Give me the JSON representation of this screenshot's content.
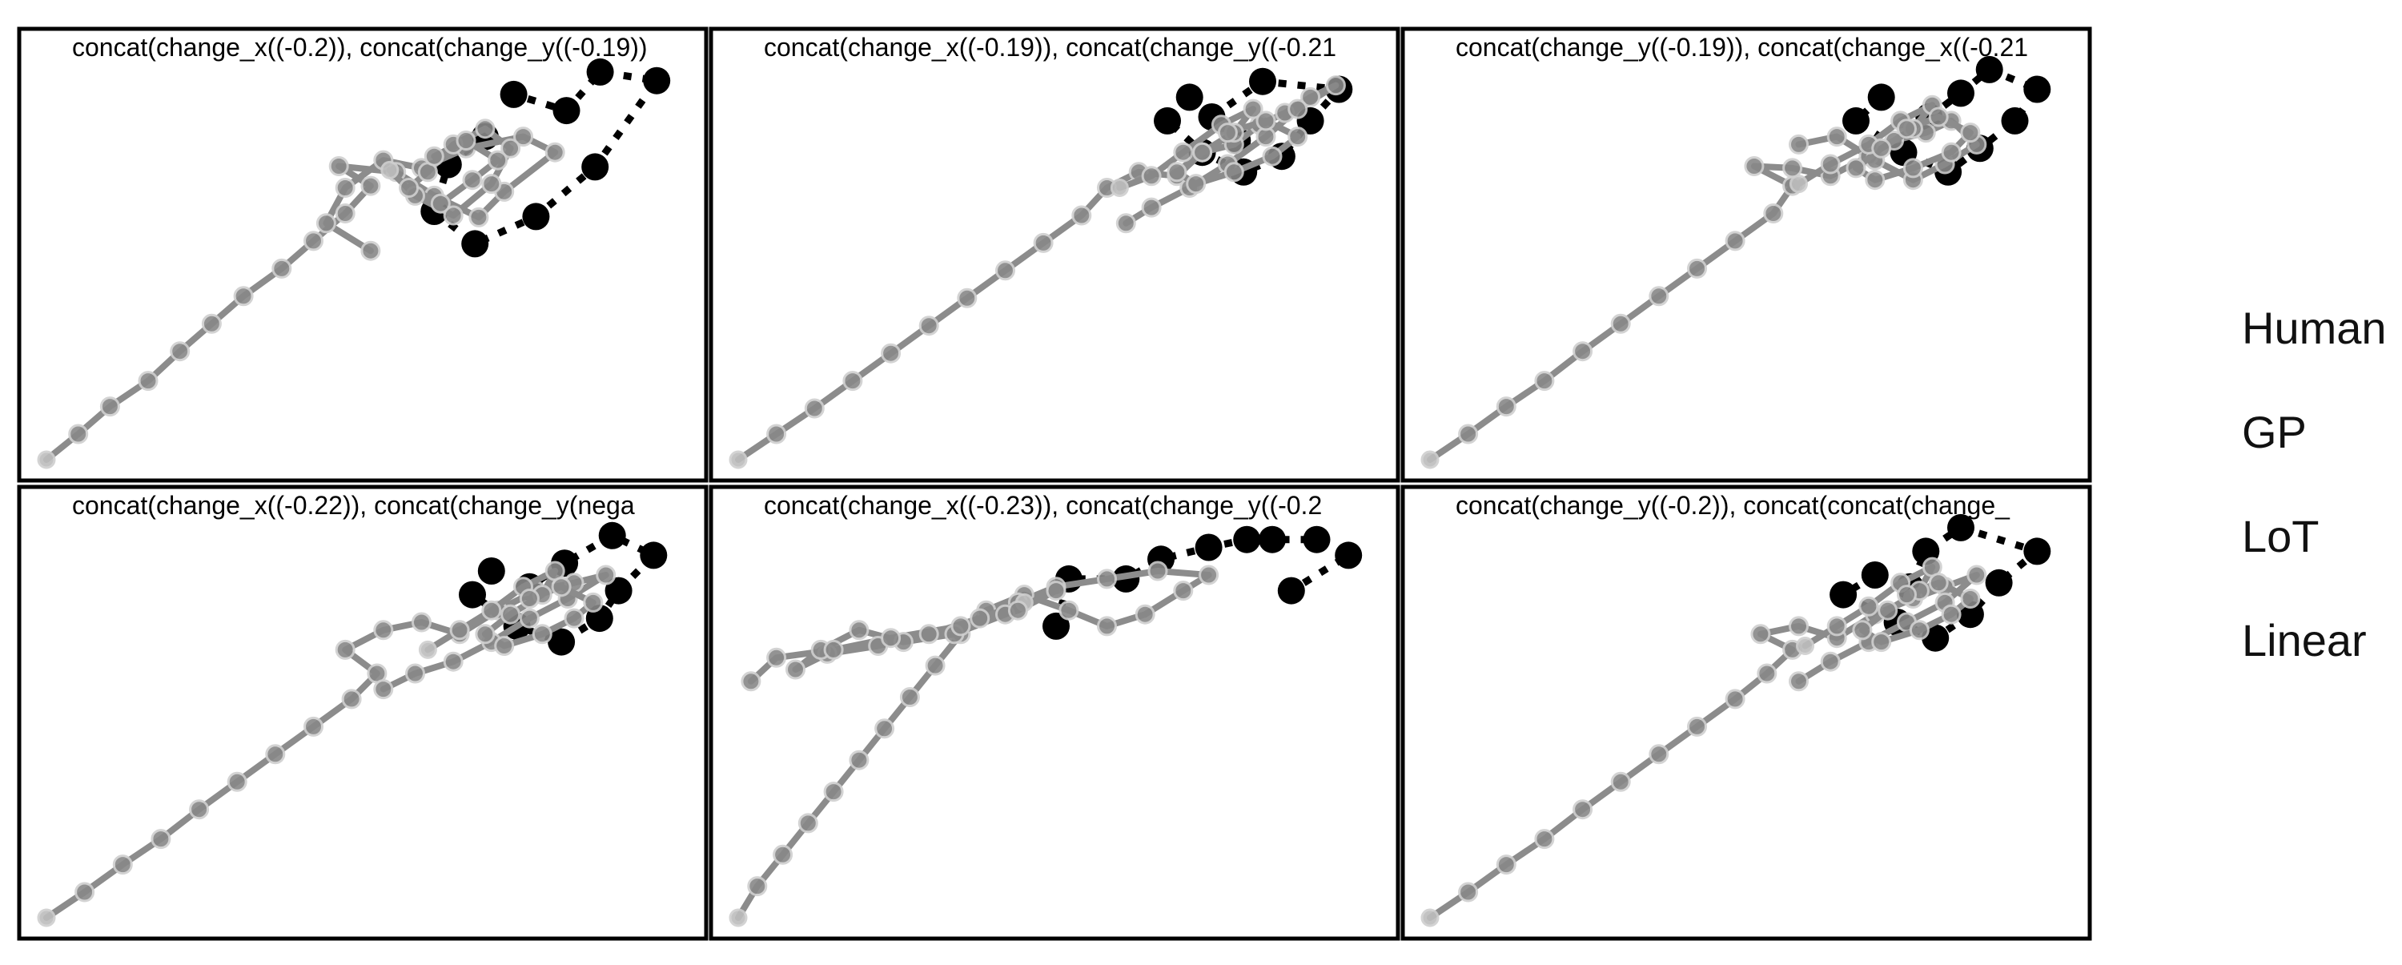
{
  "chart_data": [
    {
      "type": "line",
      "title": "concat(change_x((-0.2)), concat(change_y((-0.19))",
      "series": [
        {
          "name": "Human",
          "style": "black-dots-dotted",
          "x": [
            0.69,
            0.632,
            0.61,
            0.674,
            0.77,
            0.863,
            0.96,
            0.871,
            0.818,
            0.735
          ],
          "y": [
            0.82,
            0.749,
            0.63,
            0.548,
            0.617,
            0.743,
            0.962,
            0.984,
            0.886,
            0.927
          ]
        },
        {
          "name": "GP",
          "style": "gray-points-solid",
          "x": [
            0.0,
            0.05,
            0.1,
            0.16,
            0.21,
            0.26,
            0.31,
            0.37,
            0.42,
            0.47,
            0.51,
            0.46,
            0.55,
            0.61,
            0.68,
            0.72,
            0.8,
            0.75,
            0.66,
            0.59,
            0.53,
            0.47,
            0.44,
            0.51
          ],
          "y": [
            0.0,
            0.065,
            0.135,
            0.2,
            0.275,
            0.345,
            0.415,
            0.485,
            0.555,
            0.625,
            0.695,
            0.745,
            0.73,
            0.67,
            0.615,
            0.68,
            0.78,
            0.82,
            0.79,
            0.74,
            0.76,
            0.69,
            0.6,
            0.53
          ]
        },
        {
          "name": "LoT",
          "style": "gray-points-solid",
          "x": [
            0.54,
            0.58,
            0.64,
            0.7,
            0.73,
            0.69,
            0.64,
            0.6,
            0.57,
            0.62,
            0.67,
            0.71,
            0.66,
            0.61
          ],
          "y": [
            0.735,
            0.67,
            0.62,
            0.7,
            0.79,
            0.84,
            0.8,
            0.73,
            0.69,
            0.65,
            0.71,
            0.76,
            0.81,
            0.77
          ]
        }
      ]
    },
    {
      "type": "line",
      "title": "concat(change_x((-0.19)), concat(change_y((-0.21",
      "series": [
        {
          "name": "Human",
          "style": "black-dots-dotted",
          "x": [
            0.71,
            0.675,
            0.73,
            0.795,
            0.855,
            0.9,
            0.945,
            0.825,
            0.745,
            0.785
          ],
          "y": [
            0.92,
            0.86,
            0.78,
            0.73,
            0.77,
            0.86,
            0.94,
            0.96,
            0.87,
            0.81
          ]
        },
        {
          "name": "GP",
          "style": "gray-points-solid",
          "x": [
            0.0,
            0.06,
            0.12,
            0.18,
            0.24,
            0.3,
            0.36,
            0.42,
            0.48,
            0.54,
            0.58,
            0.63,
            0.69,
            0.73,
            0.78,
            0.82,
            0.86,
            0.9,
            0.94,
            0.88,
            0.83,
            0.77,
            0.71,
            0.65,
            0.61
          ],
          "y": [
            0.0,
            0.065,
            0.13,
            0.2,
            0.27,
            0.34,
            0.41,
            0.48,
            0.55,
            0.62,
            0.69,
            0.73,
            0.72,
            0.78,
            0.8,
            0.85,
            0.88,
            0.92,
            0.95,
            0.89,
            0.82,
            0.75,
            0.69,
            0.64,
            0.6
          ]
        },
        {
          "name": "LoT",
          "style": "gray-points-solid",
          "x": [
            0.6,
            0.65,
            0.7,
            0.76,
            0.81,
            0.78,
            0.73,
            0.69,
            0.72,
            0.78,
            0.84,
            0.88,
            0.83,
            0.77
          ],
          "y": [
            0.69,
            0.72,
            0.78,
            0.85,
            0.89,
            0.83,
            0.78,
            0.73,
            0.7,
            0.73,
            0.77,
            0.82,
            0.86,
            0.83
          ]
        }
      ]
    },
    {
      "type": "line",
      "title": "concat(change_y((-0.19)), concat(change_x((-0.21",
      "series": [
        {
          "name": "Human",
          "style": "black-dots-dotted",
          "x": [
            0.71,
            0.67,
            0.745,
            0.815,
            0.865,
            0.92,
            0.955,
            0.88,
            0.835,
            0.785
          ],
          "y": [
            0.92,
            0.86,
            0.78,
            0.73,
            0.79,
            0.86,
            0.94,
            0.99,
            0.93,
            0.87
          ]
        },
        {
          "name": "GP",
          "style": "gray-points-solid",
          "x": [
            0.0,
            0.06,
            0.12,
            0.18,
            0.24,
            0.3,
            0.36,
            0.42,
            0.48,
            0.54,
            0.57,
            0.51,
            0.57,
            0.63,
            0.69,
            0.73,
            0.78,
            0.82,
            0.86,
            0.81,
            0.76,
            0.7,
            0.64,
            0.58
          ],
          "y": [
            0.0,
            0.065,
            0.135,
            0.2,
            0.275,
            0.345,
            0.415,
            0.485,
            0.555,
            0.625,
            0.695,
            0.745,
            0.74,
            0.72,
            0.77,
            0.81,
            0.83,
            0.86,
            0.8,
            0.75,
            0.71,
            0.76,
            0.82,
            0.8
          ]
        },
        {
          "name": "LoT",
          "style": "gray-points-solid",
          "x": [
            0.58,
            0.63,
            0.69,
            0.74,
            0.79,
            0.76,
            0.71,
            0.67,
            0.7,
            0.76,
            0.82,
            0.85,
            0.8,
            0.75
          ],
          "y": [
            0.7,
            0.75,
            0.8,
            0.86,
            0.9,
            0.84,
            0.79,
            0.74,
            0.71,
            0.74,
            0.78,
            0.83,
            0.87,
            0.84
          ]
        }
      ]
    },
    {
      "type": "line",
      "title": "concat(change_x((-0.22)), concat(change_y(nega",
      "series": [
        {
          "name": "Human",
          "style": "black-dots-dotted",
          "x": [
            0.7,
            0.67,
            0.74,
            0.81,
            0.87,
            0.9,
            0.955,
            0.89,
            0.815,
            0.76
          ],
          "y": [
            0.88,
            0.82,
            0.74,
            0.7,
            0.76,
            0.83,
            0.92,
            0.97,
            0.9,
            0.84
          ]
        },
        {
          "name": "GP",
          "style": "gray-points-solid",
          "x": [
            0.0,
            0.06,
            0.12,
            0.18,
            0.24,
            0.3,
            0.36,
            0.42,
            0.48,
            0.52,
            0.47,
            0.53,
            0.59,
            0.65,
            0.71,
            0.77,
            0.83,
            0.88,
            0.82,
            0.76,
            0.7,
            0.64,
            0.58,
            0.53
          ],
          "y": [
            0.0,
            0.065,
            0.135,
            0.2,
            0.275,
            0.345,
            0.415,
            0.485,
            0.555,
            0.62,
            0.68,
            0.73,
            0.75,
            0.72,
            0.78,
            0.83,
            0.85,
            0.87,
            0.81,
            0.76,
            0.7,
            0.65,
            0.62,
            0.58
          ]
        },
        {
          "name": "LoT",
          "style": "gray-points-solid",
          "x": [
            0.6,
            0.65,
            0.7,
            0.75,
            0.8,
            0.78,
            0.73,
            0.69,
            0.72,
            0.78,
            0.83,
            0.86,
            0.81,
            0.76
          ],
          "y": [
            0.68,
            0.73,
            0.78,
            0.84,
            0.88,
            0.82,
            0.77,
            0.72,
            0.69,
            0.72,
            0.76,
            0.8,
            0.84,
            0.81
          ]
        }
      ]
    },
    {
      "type": "line",
      "title": "concat(change_x((-0.23)), concat(change_y((-0.2",
      "series": [
        {
          "name": "Human",
          "style": "black-dots-dotted",
          "x": [
            0.5,
            0.52,
            0.61,
            0.665,
            0.74,
            0.8,
            0.84,
            0.91,
            0.96,
            0.87
          ],
          "y": [
            0.74,
            0.86,
            0.86,
            0.91,
            0.94,
            0.96,
            0.96,
            0.96,
            0.92,
            0.83
          ]
        },
        {
          "name": "GP",
          "style": "gray-points-solid",
          "x": [
            0.0,
            0.03,
            0.07,
            0.11,
            0.15,
            0.19,
            0.23,
            0.27,
            0.31,
            0.35,
            0.39,
            0.45,
            0.52,
            0.58,
            0.64,
            0.7,
            0.74,
            0.66,
            0.58,
            0.5,
            0.44
          ],
          "y": [
            0.0,
            0.08,
            0.16,
            0.24,
            0.32,
            0.4,
            0.48,
            0.56,
            0.64,
            0.72,
            0.78,
            0.82,
            0.78,
            0.74,
            0.77,
            0.83,
            0.87,
            0.88,
            0.86,
            0.84,
            0.8
          ]
        },
        {
          "name": "LoT",
          "style": "gray-points-solid",
          "x": [
            0.45,
            0.38,
            0.3,
            0.22,
            0.14,
            0.09,
            0.13,
            0.19,
            0.26,
            0.34,
            0.42,
            0.5,
            0.44,
            0.35,
            0.24,
            0.15,
            0.06,
            0.02
          ],
          "y": [
            0.8,
            0.76,
            0.72,
            0.69,
            0.67,
            0.63,
            0.68,
            0.73,
            0.7,
            0.72,
            0.77,
            0.83,
            0.78,
            0.74,
            0.71,
            0.68,
            0.66,
            0.6
          ]
        }
      ]
    },
    {
      "type": "line",
      "title": "concat(change_y((-0.2)), concat(concat(change_",
      "series": [
        {
          "name": "Human",
          "style": "black-dots-dotted",
          "x": [
            0.7,
            0.65,
            0.735,
            0.795,
            0.85,
            0.895,
            0.955,
            0.835,
            0.78,
            0.755
          ],
          "y": [
            0.87,
            0.82,
            0.75,
            0.71,
            0.77,
            0.85,
            0.93,
            0.99,
            0.93,
            0.84
          ]
        },
        {
          "name": "GP",
          "style": "gray-points-solid",
          "x": [
            0.0,
            0.06,
            0.12,
            0.18,
            0.24,
            0.3,
            0.36,
            0.42,
            0.48,
            0.53,
            0.57,
            0.52,
            0.58,
            0.64,
            0.7,
            0.76,
            0.81,
            0.86,
            0.81,
            0.75,
            0.69,
            0.63,
            0.58
          ],
          "y": [
            0.0,
            0.065,
            0.135,
            0.2,
            0.275,
            0.345,
            0.415,
            0.485,
            0.555,
            0.62,
            0.68,
            0.72,
            0.74,
            0.71,
            0.77,
            0.81,
            0.84,
            0.87,
            0.8,
            0.75,
            0.7,
            0.65,
            0.6
          ]
        },
        {
          "name": "LoT",
          "style": "gray-points-solid",
          "x": [
            0.59,
            0.64,
            0.69,
            0.74,
            0.79,
            0.77,
            0.72,
            0.68,
            0.71,
            0.77,
            0.82,
            0.85,
            0.8,
            0.75
          ],
          "y": [
            0.69,
            0.74,
            0.79,
            0.85,
            0.89,
            0.83,
            0.78,
            0.73,
            0.7,
            0.73,
            0.77,
            0.81,
            0.85,
            0.82
          ]
        }
      ]
    }
  ],
  "legend": {
    "items": [
      "Human",
      "GP",
      "LoT",
      "Linear"
    ],
    "placement": "right"
  },
  "colors": {
    "human": "#000000",
    "model_line": "#8c8c8c",
    "model_point": "#888888",
    "start_point": "#bdbdbd",
    "frame": "#000000"
  }
}
